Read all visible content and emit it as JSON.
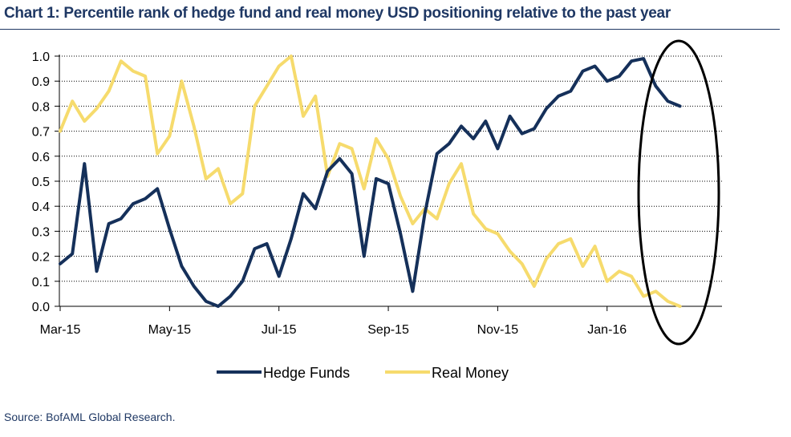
{
  "page": {
    "title": "Chart 1:  Percentile rank of hedge fund and real money USD positioning relative to the past year",
    "source": "Source: BofAML Global Research."
  },
  "chart_data": {
    "type": "line",
    "title": "Chart 1:  Percentile rank of hedge fund and real money USD positioning relative to the past year",
    "xlabel": "",
    "ylabel": "",
    "ylim": [
      0,
      1.0
    ],
    "y_ticks": [
      "0.0",
      "0.1",
      "0.2",
      "0.3",
      "0.4",
      "0.5",
      "0.6",
      "0.7",
      "0.8",
      "0.9",
      "1.0"
    ],
    "x_tick_labels": [
      "Mar-15",
      "May-15",
      "Jul-15",
      "Sep-15",
      "Nov-15",
      "Jan-16"
    ],
    "x_note": "weekly observations; tick labels every 9 weeks starting at first observation",
    "grid": "horizontal dotted",
    "legend_position": "bottom",
    "annotation": "ellipse highlighting most recent weeks",
    "colors": {
      "hedge_funds": "#15305a",
      "real_money": "#f6db6d",
      "ellipse": "#000000"
    },
    "series": [
      {
        "name": "Hedge Funds",
        "values": [
          0.17,
          0.21,
          0.57,
          0.14,
          0.33,
          0.35,
          0.41,
          0.43,
          0.47,
          0.31,
          0.16,
          0.08,
          0.02,
          0.0,
          0.04,
          0.1,
          0.23,
          0.25,
          0.12,
          0.27,
          0.45,
          0.39,
          0.54,
          0.59,
          0.53,
          0.2,
          0.51,
          0.49,
          0.29,
          0.06,
          0.37,
          0.61,
          0.65,
          0.72,
          0.67,
          0.74,
          0.63,
          0.76,
          0.69,
          0.71,
          0.79,
          0.84,
          0.86,
          0.94,
          0.96,
          0.9,
          0.92,
          0.98,
          0.99,
          0.88,
          0.82,
          0.8
        ]
      },
      {
        "name": "Real Money",
        "values": [
          0.7,
          0.82,
          0.74,
          0.79,
          0.86,
          0.98,
          0.94,
          0.92,
          0.61,
          0.68,
          0.9,
          0.72,
          0.51,
          0.55,
          0.41,
          0.45,
          0.8,
          0.88,
          0.96,
          1.0,
          0.76,
          0.84,
          0.52,
          0.65,
          0.63,
          0.47,
          0.67,
          0.59,
          0.44,
          0.33,
          0.39,
          0.35,
          0.49,
          0.57,
          0.37,
          0.31,
          0.29,
          0.22,
          0.17,
          0.08,
          0.19,
          0.25,
          0.27,
          0.16,
          0.24,
          0.1,
          0.14,
          0.12,
          0.04,
          0.06,
          0.02,
          0.0
        ]
      }
    ]
  }
}
